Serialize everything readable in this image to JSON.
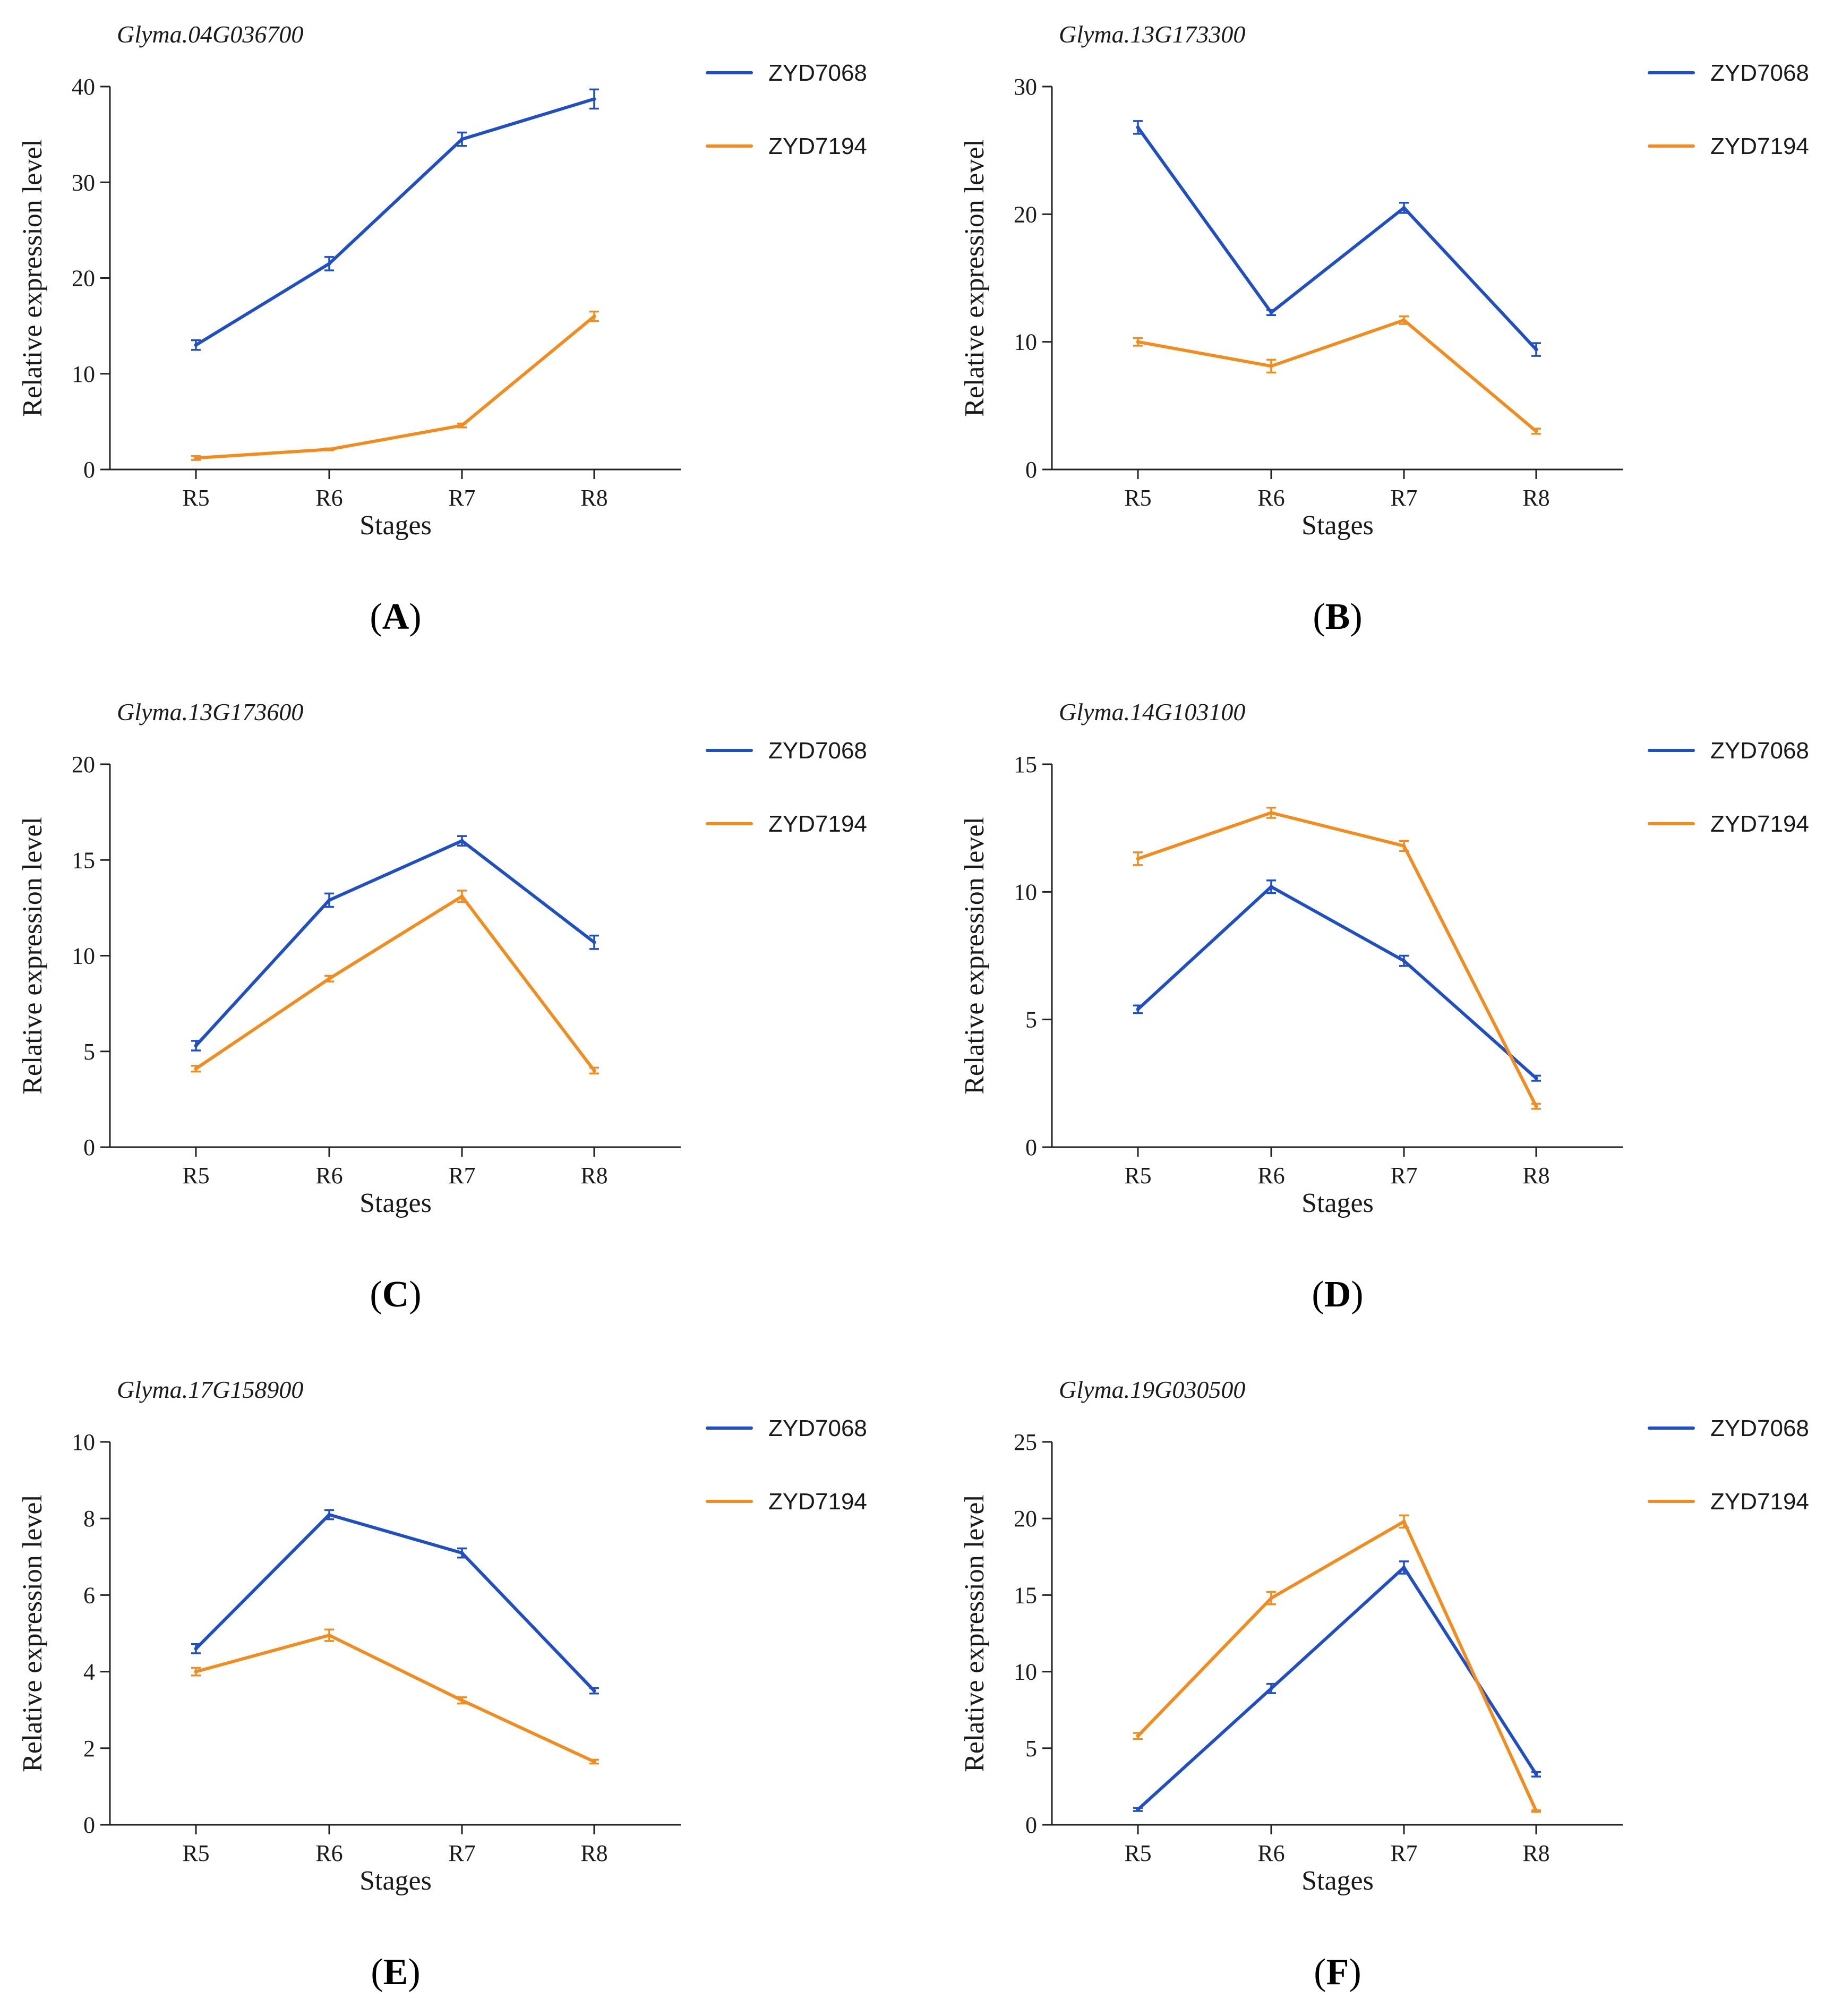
{
  "colors": {
    "ZYD7068": "#1f4fc2",
    "ZYD7194": "#f28c1e"
  },
  "chart_data": [
    {
      "type": "line",
      "panel_label": "A",
      "title": "Glyma.04G036700",
      "categories": [
        "R5",
        "R6",
        "R7",
        "R8"
      ],
      "xlabel": "Stages",
      "ylabel": "Relative expression level",
      "ylim": [
        0,
        40
      ],
      "yticks": [
        0,
        10,
        20,
        30,
        40
      ],
      "grid": false,
      "legend": "top-right",
      "series": [
        {
          "name": "ZYD7068",
          "values": [
            13.0,
            21.5,
            34.5,
            38.7
          ],
          "errors": [
            0.5,
            0.7,
            0.7,
            1.0
          ]
        },
        {
          "name": "ZYD7194",
          "values": [
            1.2,
            2.1,
            4.6,
            16.0
          ],
          "errors": [
            0.2,
            0.1,
            0.2,
            0.5
          ]
        }
      ]
    },
    {
      "type": "line",
      "panel_label": "B",
      "title": "Glyma.13G173300",
      "categories": [
        "R5",
        "R6",
        "R7",
        "R8"
      ],
      "xlabel": "Stages",
      "ylabel": "Relative expression level",
      "ylim": [
        0,
        30
      ],
      "yticks": [
        0,
        10,
        20,
        30
      ],
      "grid": false,
      "legend": "top-right",
      "series": [
        {
          "name": "ZYD7068",
          "values": [
            26.8,
            12.3,
            20.5,
            9.4
          ],
          "errors": [
            0.5,
            0.2,
            0.4,
            0.5
          ]
        },
        {
          "name": "ZYD7194",
          "values": [
            10.0,
            8.1,
            11.7,
            3.0
          ],
          "errors": [
            0.3,
            0.5,
            0.3,
            0.2
          ]
        }
      ]
    },
    {
      "type": "line",
      "panel_label": "C",
      "title": "Glyma.13G173600",
      "categories": [
        "R5",
        "R6",
        "R7",
        "R8"
      ],
      "xlabel": "Stages",
      "ylabel": "Relative expression level",
      "ylim": [
        0,
        20
      ],
      "yticks": [
        0,
        5,
        10,
        15,
        20
      ],
      "grid": false,
      "legend": "top-right",
      "series": [
        {
          "name": "ZYD7068",
          "values": [
            5.3,
            12.9,
            16.0,
            10.7
          ],
          "errors": [
            0.25,
            0.35,
            0.25,
            0.35
          ]
        },
        {
          "name": "ZYD7194",
          "values": [
            4.1,
            8.8,
            13.1,
            4.0
          ],
          "errors": [
            0.15,
            0.15,
            0.3,
            0.15
          ]
        }
      ]
    },
    {
      "type": "line",
      "panel_label": "D",
      "title": "Glyma.14G103100",
      "categories": [
        "R5",
        "R6",
        "R7",
        "R8"
      ],
      "xlabel": "Stages",
      "ylabel": "Relative expression level",
      "ylim": [
        0,
        15
      ],
      "yticks": [
        0,
        5,
        10,
        15
      ],
      "grid": false,
      "legend": "top-right",
      "series": [
        {
          "name": "ZYD7068",
          "values": [
            5.4,
            10.2,
            7.3,
            2.7
          ],
          "errors": [
            0.15,
            0.25,
            0.2,
            0.1
          ]
        },
        {
          "name": "ZYD7194",
          "values": [
            11.3,
            13.1,
            11.8,
            1.6
          ],
          "errors": [
            0.25,
            0.2,
            0.2,
            0.1
          ]
        }
      ]
    },
    {
      "type": "line",
      "panel_label": "E",
      "title": "Glyma.17G158900",
      "categories": [
        "R5",
        "R6",
        "R7",
        "R8"
      ],
      "xlabel": "Stages",
      "ylabel": "Relative expression level",
      "ylim": [
        0,
        10
      ],
      "yticks": [
        0,
        2,
        4,
        6,
        8,
        10
      ],
      "grid": false,
      "legend": "top-right",
      "series": [
        {
          "name": "ZYD7068",
          "values": [
            4.6,
            8.1,
            7.1,
            3.5
          ],
          "errors": [
            0.12,
            0.12,
            0.12,
            0.07
          ]
        },
        {
          "name": "ZYD7194",
          "values": [
            4.0,
            4.95,
            3.25,
            1.65
          ],
          "errors": [
            0.1,
            0.15,
            0.08,
            0.05
          ]
        }
      ]
    },
    {
      "type": "line",
      "panel_label": "F",
      "title": "Glyma.19G030500",
      "categories": [
        "R5",
        "R6",
        "R7",
        "R8"
      ],
      "xlabel": "Stages",
      "ylabel": "Relative expression level",
      "ylim": [
        0,
        25
      ],
      "yticks": [
        0,
        5,
        10,
        15,
        20,
        25
      ],
      "grid": false,
      "legend": "top-right",
      "series": [
        {
          "name": "ZYD7068",
          "values": [
            1.0,
            8.9,
            16.8,
            3.3
          ],
          "errors": [
            0.1,
            0.3,
            0.4,
            0.15
          ]
        },
        {
          "name": "ZYD7194",
          "values": [
            5.8,
            14.8,
            19.8,
            0.9
          ],
          "errors": [
            0.2,
            0.4,
            0.4,
            0.05
          ]
        }
      ]
    }
  ]
}
